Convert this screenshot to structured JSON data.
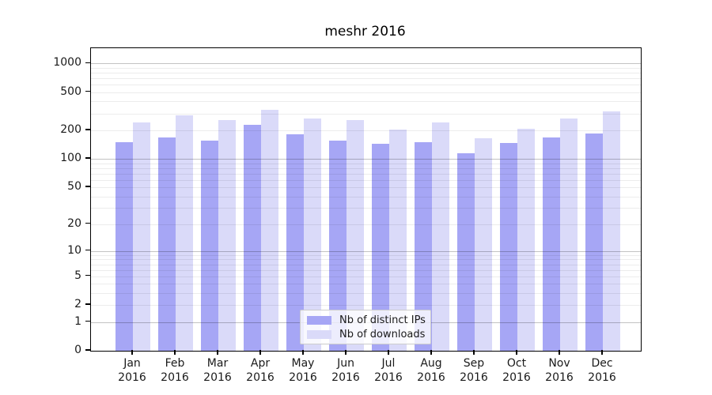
{
  "title": "meshr 2016",
  "chart_data": {
    "type": "bar",
    "title": "meshr 2016",
    "categories": [
      "Jan",
      "Feb",
      "Mar",
      "Apr",
      "May",
      "Jun",
      "Jul",
      "Aug",
      "Sep",
      "Oct",
      "Nov",
      "Dec"
    ],
    "category_year": "2016",
    "series": [
      {
        "name": "Nb of distinct IPs",
        "color": "#a6a6f5",
        "values": [
          151,
          167,
          156,
          228,
          180,
          157,
          144,
          150,
          114,
          147,
          167,
          186
        ]
      },
      {
        "name": "Nb of downloads",
        "color": "#dadaf9",
        "values": [
          242,
          288,
          255,
          330,
          265,
          254,
          203,
          240,
          165,
          207,
          268,
          313
        ]
      }
    ],
    "xlabel": "",
    "ylabel": "",
    "yscale": "log10(value+1)",
    "yticks": [
      0,
      1,
      2,
      5,
      10,
      20,
      50,
      100,
      200,
      500,
      1000
    ],
    "ylim": [
      0,
      1444
    ],
    "grid": "horizontal, log minors light gray, decade majors darker gray",
    "legend_position": "inside bottom-center",
    "colors": {
      "bar_distinct_ips": "#a6a6f5",
      "bar_downloads": "#dadaf9",
      "gridline_minor": "#ececec",
      "gridline_major": "#c3c3c3",
      "axis": "#000000",
      "text": "#1a1a1a"
    }
  }
}
